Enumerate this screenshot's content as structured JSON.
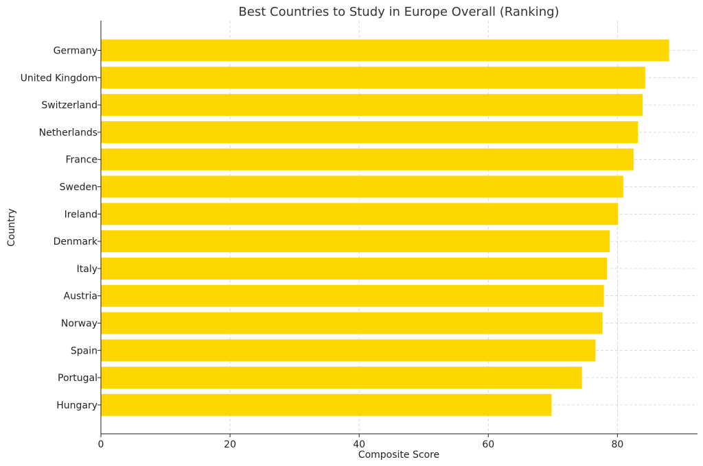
{
  "chart_data": {
    "type": "bar",
    "orientation": "horizontal",
    "title": "Best Countries to Study in Europe Overall (Ranking)",
    "xlabel": "Composite Score",
    "ylabel": "Country",
    "categories": [
      "Germany",
      "United Kingdom",
      "Switzerland",
      "Netherlands",
      "France",
      "Sweden",
      "Ireland",
      "Denmark",
      "Italy",
      "Austria",
      "Norway",
      "Spain",
      "Portugal",
      "Hungary"
    ],
    "values": [
      88.0,
      84.3,
      83.9,
      83.2,
      82.5,
      80.9,
      80.1,
      78.8,
      78.4,
      77.9,
      77.7,
      76.6,
      74.5,
      69.8
    ],
    "xlim": [
      0,
      92.4
    ],
    "xticks": [
      0,
      20,
      40,
      60,
      80
    ],
    "grid": true,
    "bar_color": "#FFD700"
  }
}
